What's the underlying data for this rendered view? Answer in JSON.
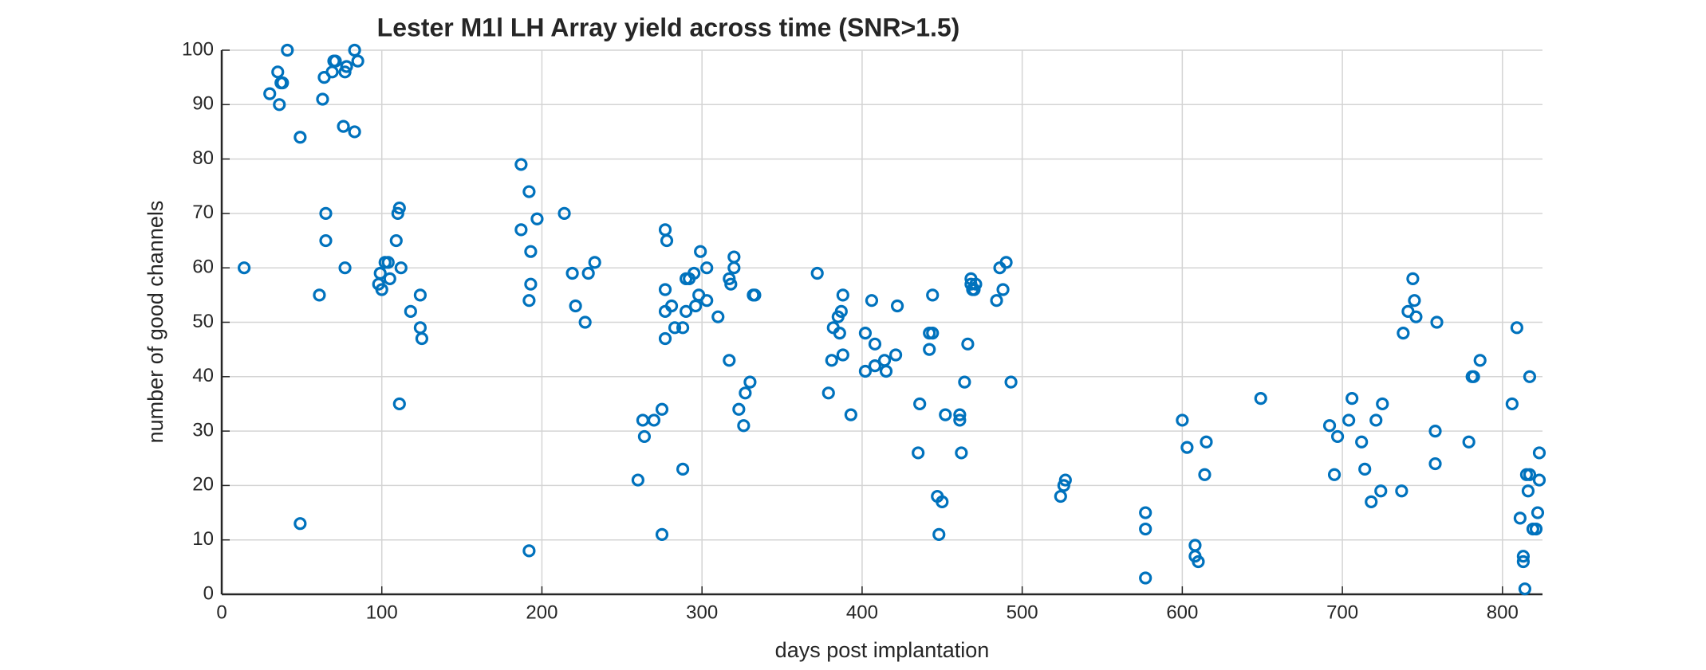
{
  "chart_data": {
    "type": "scatter",
    "title": "Lester M1l LH Array yield across time (SNR>1.5)",
    "x_label": "days post implantation",
    "y_label": "number of good channels",
    "color": "#0072bd",
    "xlim": [
      0,
      825
    ],
    "xticks": [
      0,
      100,
      200,
      300,
      400,
      500,
      600,
      700,
      800
    ],
    "ylim": [
      0,
      100
    ],
    "yticks": [
      0,
      10,
      20,
      30,
      40,
      50,
      60,
      70,
      80,
      90,
      100
    ],
    "grid": true,
    "x": [
      14,
      30,
      35,
      36,
      37,
      38,
      41,
      49,
      49,
      61,
      63,
      64,
      65,
      65,
      69,
      70,
      71,
      76,
      77,
      78,
      77,
      83,
      83,
      85,
      98,
      99,
      100,
      102,
      104,
      105,
      109,
      110,
      111,
      112,
      111,
      118,
      124,
      124,
      125,
      187,
      187,
      192,
      193,
      193,
      192,
      192,
      197,
      214,
      219,
      221,
      227,
      229,
      233,
      260,
      263,
      264,
      270,
      275,
      275,
      277,
      277,
      278,
      277,
      277,
      281,
      283,
      288,
      288,
      290,
      290,
      292,
      295,
      296,
      298,
      299,
      303,
      303,
      310,
      317,
      317,
      318,
      320,
      320,
      323,
      326,
      327,
      330,
      332,
      333,
      372,
      379,
      381,
      382,
      385,
      386,
      387,
      388,
      388,
      393,
      402,
      402,
      406,
      408,
      408,
      414,
      415,
      421,
      422,
      436,
      435,
      442,
      442,
      444,
      444,
      447,
      448,
      450,
      452,
      461,
      461,
      462,
      464,
      466,
      468,
      468,
      469,
      470,
      471,
      484,
      486,
      488,
      490,
      493,
      524,
      526,
      527,
      577,
      577,
      577,
      600,
      603,
      608,
      608,
      610,
      614,
      615,
      649,
      692,
      695,
      697,
      704,
      706,
      712,
      714,
      718,
      721,
      724,
      725,
      737,
      738,
      741,
      744,
      745,
      746,
      758,
      758,
      759,
      779,
      781,
      782,
      786,
      806,
      809,
      811,
      813,
      813,
      814,
      815,
      816,
      817,
      817,
      819,
      821,
      822,
      823,
      823
    ],
    "values": [
      60,
      92,
      96,
      90,
      94,
      94,
      100,
      84,
      13,
      55,
      91,
      95,
      65,
      70,
      96,
      98,
      98,
      86,
      96,
      97,
      60,
      85,
      100,
      98,
      57,
      59,
      56,
      61,
      61,
      58,
      65,
      70,
      71,
      60,
      35,
      52,
      55,
      49,
      47,
      67,
      79,
      74,
      63,
      57,
      54,
      8,
      69,
      70,
      59,
      53,
      50,
      59,
      61,
      21,
      32,
      29,
      32,
      34,
      11,
      67,
      56,
      65,
      52,
      47,
      53,
      49,
      49,
      23,
      52,
      58,
      58,
      59,
      53,
      55,
      63,
      54,
      60,
      51,
      43,
      58,
      57,
      62,
      60,
      34,
      31,
      37,
      39,
      55,
      55,
      59,
      37,
      43,
      49,
      51,
      48,
      52,
      44,
      55,
      33,
      41,
      48,
      54,
      46,
      42,
      43,
      41,
      44,
      53,
      35,
      26,
      45,
      48,
      48,
      55,
      18,
      11,
      17,
      33,
      33,
      32,
      26,
      39,
      46,
      58,
      57,
      56,
      56,
      57,
      54,
      60,
      56,
      61,
      39,
      18,
      20,
      21,
      15,
      12,
      3,
      32,
      27,
      9,
      7,
      6,
      22,
      28,
      36,
      31,
      22,
      29,
      32,
      36,
      28,
      23,
      17,
      32,
      19,
      35,
      19,
      48,
      52,
      58,
      54,
      51,
      30,
      24,
      50,
      28,
      40,
      40,
      43,
      35,
      49,
      14,
      7,
      6,
      1,
      22,
      19,
      22,
      40,
      12,
      12,
      15,
      21,
      26
    ]
  }
}
